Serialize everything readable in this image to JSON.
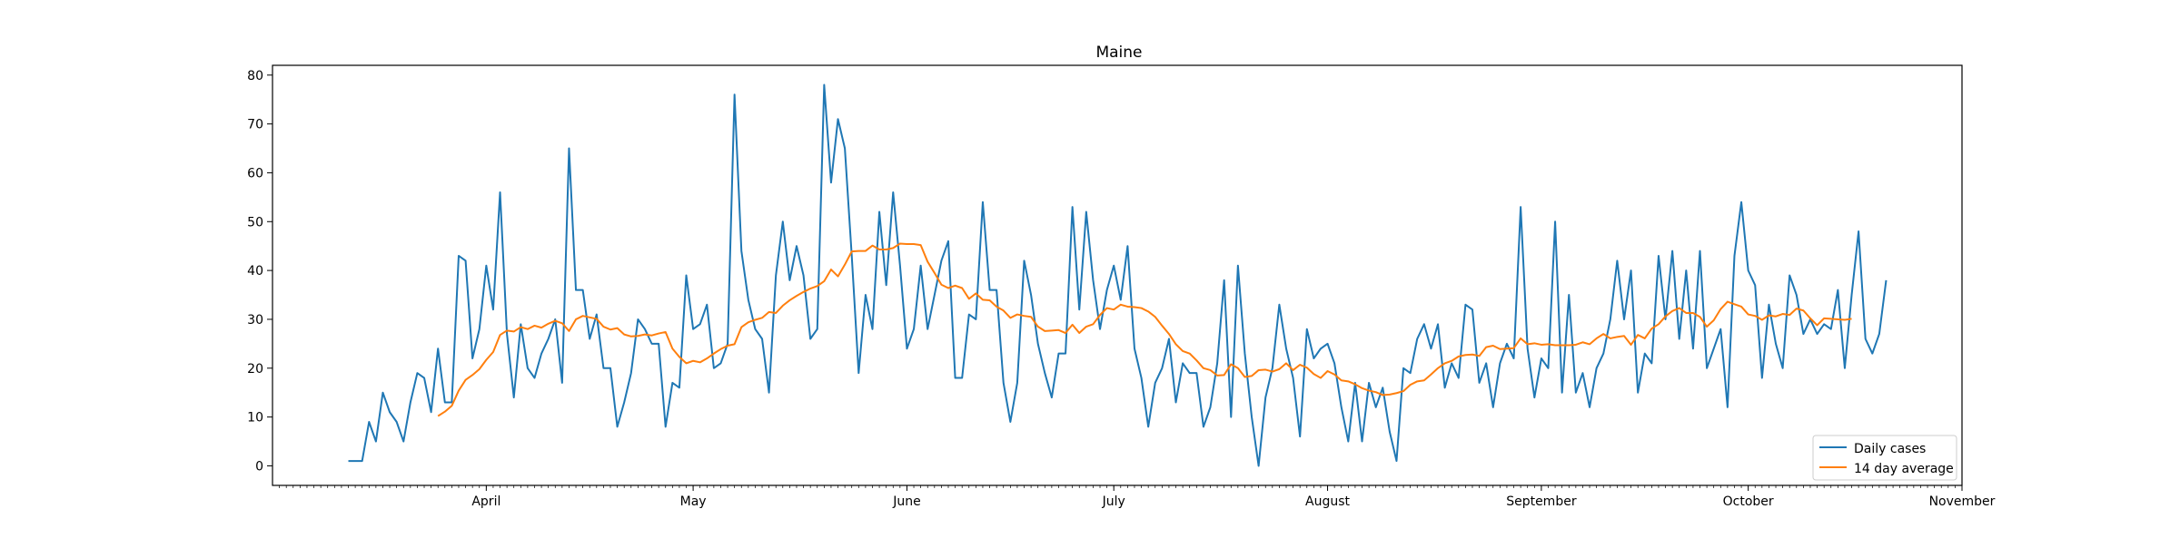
{
  "chart_data": {
    "type": "line",
    "title": "Maine",
    "xlabel": "",
    "ylabel": "",
    "x_axis": {
      "type": "date",
      "range": [
        "2020-03-01",
        "2020-11-01"
      ],
      "tick_dates": [
        "2020-04-01",
        "2020-05-01",
        "2020-06-01",
        "2020-07-01",
        "2020-08-01",
        "2020-09-01",
        "2020-10-01",
        "2020-11-01"
      ],
      "tick_labels": [
        "April",
        "May",
        "June",
        "July",
        "August",
        "September",
        "October",
        "November"
      ]
    },
    "y_axis": {
      "range": [
        -4,
        82
      ],
      "ticks": [
        0,
        10,
        20,
        30,
        40,
        50,
        60,
        70,
        80
      ]
    },
    "grid": false,
    "legend": {
      "placement": "lower right",
      "entries": [
        "Daily cases",
        "14 day average"
      ]
    },
    "series": [
      {
        "name": "Daily cases",
        "color": "#1f77b4",
        "start_date": "2020-03-12",
        "values": [
          1,
          1,
          1,
          9,
          5,
          15,
          11,
          9,
          5,
          13,
          19,
          18,
          11,
          24,
          13,
          13,
          43,
          42,
          22,
          28,
          41,
          32,
          56,
          27,
          14,
          29,
          20,
          18,
          23,
          26,
          30,
          17,
          65,
          36,
          36,
          26,
          31,
          20,
          20,
          8,
          13,
          19,
          30,
          28,
          25,
          25,
          8,
          17,
          16,
          39,
          28,
          29,
          33,
          20,
          21,
          25,
          76,
          44,
          34,
          28,
          26,
          15,
          39,
          50,
          38,
          45,
          39,
          26,
          28,
          78,
          58,
          71,
          65,
          43,
          19,
          35,
          28,
          52,
          37,
          56,
          41,
          24,
          28,
          41,
          28,
          35,
          42,
          46,
          18,
          18,
          31,
          30,
          54,
          36,
          36,
          17,
          9,
          17,
          42,
          35,
          25,
          19,
          14,
          23,
          23,
          53,
          32,
          52,
          38,
          28,
          36,
          41,
          34,
          45,
          24,
          18,
          8,
          17,
          20,
          26,
          13,
          21,
          19,
          19,
          8,
          12,
          21,
          38,
          10,
          41,
          23,
          10,
          0,
          14,
          20,
          33,
          24,
          18,
          6,
          28,
          22,
          24,
          25,
          21,
          12,
          5,
          17,
          5,
          17,
          12,
          16,
          7,
          1,
          20,
          19,
          26,
          29,
          24,
          29,
          16,
          21,
          18,
          33,
          32,
          17,
          21,
          12,
          21,
          25,
          22,
          53,
          24,
          14,
          22,
          20,
          50,
          15,
          35,
          15,
          19,
          12,
          20,
          23,
          30,
          42,
          30,
          40,
          15,
          23,
          21,
          43,
          30,
          44,
          26,
          40,
          24,
          44,
          20,
          24,
          28,
          12,
          43,
          54,
          40,
          37,
          18,
          33,
          25,
          20,
          39,
          35,
          27,
          30,
          27,
          29,
          28,
          36,
          20,
          35,
          48,
          26,
          23,
          27,
          38
        ]
      },
      {
        "name": "14 day average",
        "color": "#ff7f0e",
        "start_date": "2020-03-25",
        "values": [
          10.2,
          11.1,
          12.3,
          15.4,
          17.6,
          18.6,
          19.8,
          21.7,
          23.3,
          26.8,
          27.7,
          27.5,
          28.4,
          28.0,
          28.7,
          28.3,
          29.1,
          29.7,
          29.2,
          27.6,
          30.0,
          30.7,
          30.4,
          30.1,
          28.5,
          27.9,
          28.2,
          26.9,
          26.5,
          26.6,
          26.9,
          26.7,
          27.1,
          27.4,
          24.0,
          22.3,
          21.0,
          21.5,
          21.2,
          22.0,
          23.0,
          23.9,
          24.6,
          24.9,
          28.4,
          29.4,
          29.9,
          30.3,
          31.5,
          31.3,
          32.8,
          33.9,
          34.8,
          35.6,
          36.3,
          36.8,
          37.8,
          40.2,
          38.8,
          41.2,
          43.9,
          44.0,
          44.0,
          45.1,
          44.3,
          44.3,
          44.6,
          45.5,
          45.4,
          45.4,
          45.2,
          41.8,
          39.5,
          37.1,
          36.4,
          36.9,
          36.4,
          34.2,
          35.3,
          34.0,
          33.9,
          32.6,
          31.8,
          30.3,
          31.0,
          30.7,
          30.5,
          28.5,
          27.6,
          27.7,
          27.8,
          27.2,
          28.9,
          27.2,
          28.5,
          29.0,
          30.9,
          32.3,
          32.0,
          33.0,
          32.6,
          32.5,
          32.3,
          31.6,
          30.5,
          28.7,
          27.0,
          24.9,
          23.5,
          23.0,
          21.6,
          20.0,
          19.6,
          18.5,
          18.6,
          20.8,
          20.0,
          18.2,
          18.4,
          19.6,
          19.7,
          19.3,
          19.8,
          21.0,
          19.6,
          20.7,
          20.1,
          18.8,
          18.0,
          19.4,
          18.7,
          17.5,
          17.3,
          16.7,
          15.9,
          15.4,
          15.1,
          14.5,
          14.6,
          14.9,
          15.3,
          16.6,
          17.3,
          17.5,
          18.7,
          20.0,
          21.0,
          21.5,
          22.4,
          22.7,
          22.8,
          22.5,
          24.3,
          24.6,
          23.9,
          24.0,
          24.1,
          26.1,
          24.9,
          25.1,
          24.8,
          24.9,
          24.7,
          24.7,
          24.7,
          24.8,
          25.3,
          24.9,
          26.1,
          27.0,
          26.1,
          26.4,
          26.6,
          24.8,
          26.8,
          26.1,
          28.1,
          29.0,
          30.6,
          31.7,
          32.3,
          31.3,
          31.3,
          30.5,
          28.5,
          29.8,
          32.1,
          33.6,
          33.1,
          32.6,
          31.0,
          30.7,
          29.9,
          30.8,
          30.6,
          31.1,
          30.9,
          32.2,
          31.8,
          30.2,
          28.8,
          30.2,
          30.1,
          30.0,
          29.9,
          30.1
        ]
      }
    ]
  }
}
